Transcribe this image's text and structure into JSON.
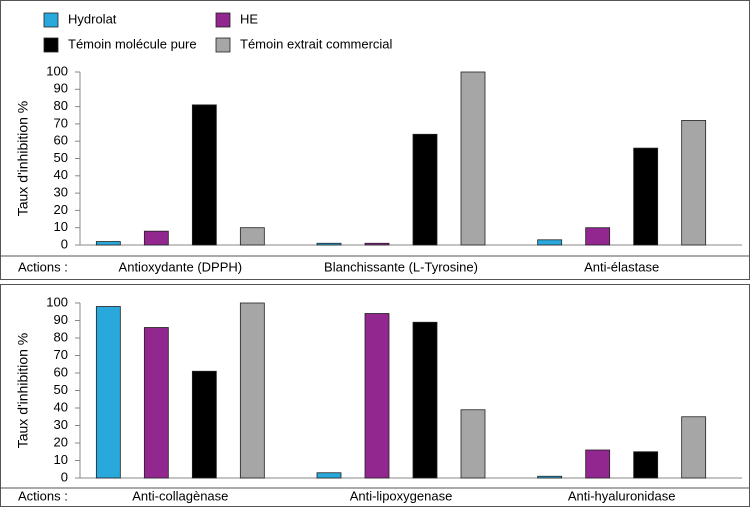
{
  "chart_data": [
    {
      "type": "bar",
      "y_label": "Taux d'inhibition %",
      "category_label": "Actions :",
      "categories": [
        "Antioxydante (DPPH)",
        "Blanchissante (L-Tyrosine)",
        "Anti-élastase"
      ],
      "series": [
        {
          "name": "Hydrolat",
          "color": "#29a8dc",
          "values": [
            2,
            1,
            3
          ]
        },
        {
          "name": "HE",
          "color": "#92278f",
          "values": [
            8,
            1,
            10
          ]
        },
        {
          "name": "Témoin molécule pure",
          "color": "#000000",
          "values": [
            81,
            64,
            56
          ]
        },
        {
          "name": "Témoin extrait commercial",
          "color": "#a6a6a6",
          "values": [
            10,
            100,
            72
          ]
        }
      ],
      "ylim": [
        0,
        100
      ],
      "yticks": [
        0,
        10,
        20,
        30,
        40,
        50,
        60,
        70,
        80,
        90,
        100
      ]
    },
    {
      "type": "bar",
      "y_label": "Taux d'inhibition %",
      "category_label": "Actions :",
      "categories": [
        "Anti-collagènase",
        "Anti-lipoxygenase",
        "Anti-hyaluronidase"
      ],
      "series": [
        {
          "color": "#29a8dc",
          "values": [
            98,
            3,
            1
          ]
        },
        {
          "color": "#92278f",
          "values": [
            86,
            94,
            16
          ]
        },
        {
          "color": "#000000",
          "values": [
            61,
            89,
            15
          ]
        },
        {
          "color": "#a6a6a6",
          "values": [
            100,
            39,
            35
          ]
        }
      ],
      "ylim": [
        0,
        100
      ],
      "yticks": [
        0,
        10,
        20,
        30,
        40,
        50,
        60,
        70,
        80,
        90,
        100
      ]
    }
  ]
}
